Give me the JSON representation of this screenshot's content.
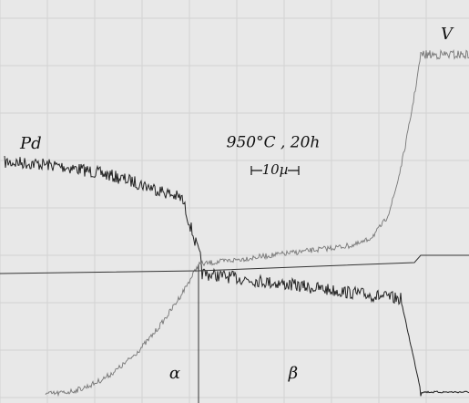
{
  "labels": {
    "element_left": "Pd",
    "element_right": "V",
    "condition": "950°C , 20h",
    "scale": "10µ",
    "phase_left": "α",
    "phase_right": "β"
  }
}
